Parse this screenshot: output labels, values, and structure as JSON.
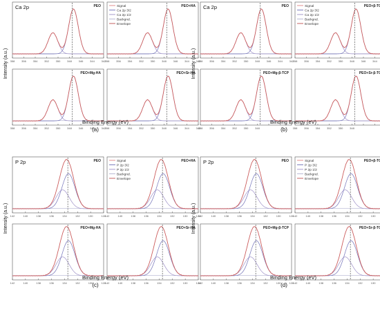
{
  "figure": {
    "group_labels": [
      "(a)",
      "(b)",
      "(c)",
      "(d)"
    ],
    "ylabel": "Intensity (a.u.)",
    "xlabel": "Binding Energy (eV)"
  },
  "chart_data": [
    {
      "type": "line",
      "group": "(a)",
      "element_label": "Ca 2p",
      "legend": [
        "Signal",
        "Ca 2p 3/2",
        "Ca 2p 1/2",
        "Backgnd.",
        "Envelope"
      ],
      "legend_position": "top-left of top-right panel",
      "xlim": [
        358,
        342
      ],
      "xticks": [
        358,
        356,
        354,
        352,
        350,
        348,
        346,
        344,
        342
      ],
      "xticks_bottom": [
        358,
        356,
        354,
        352,
        350,
        348,
        346,
        344,
        342
      ],
      "dashed_line_x": 347.5,
      "peaks": [
        {
          "center": 347.3,
          "height": 1.0,
          "width": 0.85
        },
        {
          "center": 350.9,
          "height": 0.47,
          "width": 0.85
        }
      ],
      "panels": [
        {
          "title": "PEO",
          "legend": false
        },
        {
          "title": "PEO+HA",
          "legend": true
        },
        {
          "title": "PEO+Mg-HA",
          "legend": false
        },
        {
          "title": "PEO+Sr-HA",
          "legend": false
        }
      ],
      "colors": {
        "signal": "#e08080",
        "component1": "#7070b8",
        "component2": "#9e90c8",
        "background": "#b0b0d0",
        "envelope": "#c05050"
      }
    },
    {
      "type": "line",
      "group": "(b)",
      "element_label": "Ca 2p",
      "legend": [
        "Signal",
        "Ca 2p 3/2",
        "Ca 2p 1/2",
        "Backgnd.",
        "Envelope"
      ],
      "legend_position": "top-left of top-right panel",
      "xlim": [
        358,
        342
      ],
      "xticks": [
        358,
        356,
        354,
        352,
        350,
        348,
        346,
        344,
        342
      ],
      "xticks_bottom": [
        358,
        356,
        354,
        352,
        350,
        348
      ],
      "dashed_line_x": 347.5,
      "peaks": [
        {
          "center": 347.3,
          "height": 1.0,
          "width": 0.85
        },
        {
          "center": 350.9,
          "height": 0.47,
          "width": 0.85
        }
      ],
      "panels": [
        {
          "title": "PEO",
          "legend": false
        },
        {
          "title": "PEO+β-TCP",
          "legend": true
        },
        {
          "title": "PEO+Mg-β-TCP",
          "legend": false
        },
        {
          "title": "PEO+Sr-β-TCP",
          "legend": false
        }
      ],
      "colors": {
        "signal": "#e08080",
        "component1": "#7070b8",
        "component2": "#9e90c8",
        "background": "#b0b0d0",
        "envelope": "#c05050"
      }
    },
    {
      "type": "line",
      "group": "(c)",
      "element_label": "P 2p",
      "legend": [
        "Signal",
        "P 2p 3/2",
        "P 2p 1/2",
        "Backgnd.",
        "Envelope"
      ],
      "legend_position": "top-left of top-right panel",
      "xlim": [
        142,
        128
      ],
      "xticks": [
        142,
        140,
        138,
        136,
        134,
        132,
        130,
        128
      ],
      "xticks_bottom": [
        142,
        140,
        138,
        136,
        134,
        132,
        130,
        128
      ],
      "dashed_line_x": 133.5,
      "peaks": [
        {
          "center": 133.4,
          "height": 0.78,
          "width": 1.0
        },
        {
          "center": 134.3,
          "height": 0.42,
          "width": 1.0
        }
      ],
      "panels": [
        {
          "title": "PEO",
          "legend": false
        },
        {
          "title": "PEO+HA",
          "legend": true
        },
        {
          "title": "PEO+Mg-HA",
          "legend": false
        },
        {
          "title": "PEO+Sr-HA",
          "legend": false
        }
      ],
      "colors": {
        "signal": "#e08080",
        "component1": "#7070b8",
        "component2": "#9e90c8",
        "background": "#b0b0d0",
        "envelope": "#c05050"
      }
    },
    {
      "type": "line",
      "group": "(d)",
      "element_label": "P 2p",
      "legend": [
        "Signal",
        "P 2p 3/2",
        "P 2p 1/2",
        "Backgnd.",
        "Envelope"
      ],
      "legend_position": "top-left of top-right panel",
      "xlim": [
        142,
        128
      ],
      "xticks": [
        142,
        140,
        138,
        136,
        134,
        132,
        130,
        128
      ],
      "xticks_bottom": [
        142,
        140,
        138,
        136,
        134,
        132,
        130,
        128
      ],
      "dashed_line_x": 133.5,
      "peaks": [
        {
          "center": 133.4,
          "height": 0.78,
          "width": 1.0
        },
        {
          "center": 134.3,
          "height": 0.42,
          "width": 1.0
        }
      ],
      "panels": [
        {
          "title": "PEO",
          "legend": false
        },
        {
          "title": "PEO+β-TCP",
          "legend": true
        },
        {
          "title": "PEO+Mg-β-TCP",
          "legend": false
        },
        {
          "title": "PEO+Sr-β-TCP",
          "legend": false
        }
      ],
      "colors": {
        "signal": "#e08080",
        "component1": "#7070b8",
        "component2": "#9e90c8",
        "background": "#b0b0d0",
        "envelope": "#c05050"
      }
    }
  ]
}
